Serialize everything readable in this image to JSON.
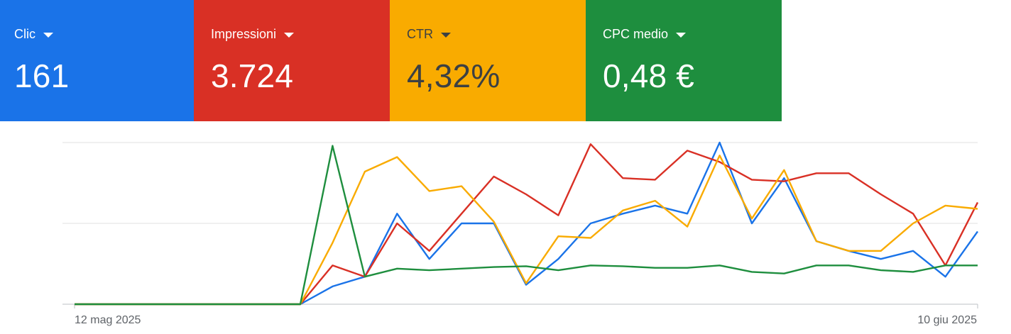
{
  "metrics": [
    {
      "label": "Clic",
      "value": "161",
      "color": "#1a73e8",
      "text_color": "#ffffff",
      "icon": "caret-down-icon"
    },
    {
      "label": "Impressioni",
      "value": "3.724",
      "color": "#d93025",
      "text_color": "#ffffff",
      "icon": "caret-down-icon"
    },
    {
      "label": "CTR",
      "value": "4,32%",
      "color": "#f9ab00",
      "text_color": "#3c4043",
      "icon": "caret-down-icon"
    },
    {
      "label": "CPC medio",
      "value": "0,48 €",
      "color": "#1e8e3e",
      "text_color": "#ffffff",
      "icon": "caret-down-icon"
    }
  ],
  "chart_data": {
    "type": "line",
    "x_start": "12 mag 2025",
    "x_end": "10 giu 2025",
    "x_tick_labels": [
      "12 mag 2025",
      "10 giu 2025"
    ],
    "grid": true,
    "gridline_levels": [
      0,
      0.5,
      1
    ],
    "series": [
      {
        "color": "#1a73e8",
        "values": [
          0,
          0,
          0,
          0,
          0,
          0,
          0,
          0,
          0.11,
          0.17,
          0.56,
          0.28,
          0.5,
          0.5,
          0.12,
          0.28,
          0.5,
          0.56,
          0.61,
          0.56,
          1.0,
          0.5,
          0.78,
          0.39,
          0.33,
          0.28,
          0.33,
          0.17,
          0.45
        ]
      },
      {
        "color": "#d93025",
        "values": [
          0,
          0,
          0,
          0,
          0,
          0,
          0,
          0,
          0.24,
          0.17,
          0.5,
          0.33,
          0.56,
          0.79,
          0.68,
          0.55,
          0.99,
          0.78,
          0.77,
          0.95,
          0.88,
          0.77,
          0.76,
          0.81,
          0.81,
          0.68,
          0.56,
          0.24,
          0.63
        ]
      },
      {
        "color": "#f9ab00",
        "values": [
          0,
          0,
          0,
          0,
          0,
          0,
          0,
          0,
          0.38,
          0.82,
          0.91,
          0.7,
          0.73,
          0.51,
          0.13,
          0.42,
          0.41,
          0.58,
          0.64,
          0.48,
          0.92,
          0.53,
          0.83,
          0.39,
          0.33,
          0.33,
          0.5,
          0.61,
          0.59
        ]
      },
      {
        "color": "#1e8e3e",
        "values": [
          0,
          0,
          0,
          0,
          0,
          0,
          0,
          0,
          0.98,
          0.17,
          0.22,
          0.21,
          0.22,
          0.23,
          0.235,
          0.21,
          0.24,
          0.235,
          0.225,
          0.225,
          0.24,
          0.2,
          0.19,
          0.24,
          0.24,
          0.21,
          0.2,
          0.24,
          0.24
        ]
      }
    ]
  }
}
